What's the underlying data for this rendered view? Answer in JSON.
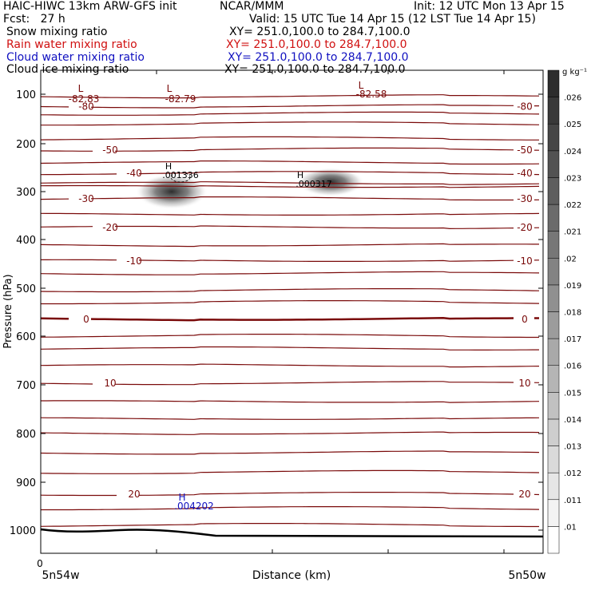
{
  "header": {
    "model": "HAIC-HIWC 13km ARW-GFS init",
    "org": "NCAR/MMM",
    "init": "Init: 12 UTC Mon 13 Apr 15",
    "fcst": "Fcst:   27 h",
    "valid": "Valid: 15 UTC Tue 14 Apr 15 (12 LST Tue 14 Apr 15)"
  },
  "fields": [
    {
      "name": "Snow mixing ratio",
      "xy": "XY= 251.0,100.0 to 284.7,100.0",
      "color": "#000000"
    },
    {
      "name": "Rain water mixing ratio",
      "xy": "XY= 251.0,100.0 to 284.7,100.0",
      "color": "#d01010"
    },
    {
      "name": "Cloud water mixing ratio",
      "xy": "XY= 251.0,100.0 to 284.7,100.0",
      "color": "#1010c0"
    },
    {
      "name": "Cloud ice mixing ratio",
      "xy": "XY= 251.0,100.0 to 284.7,100.0",
      "color": "#000000"
    }
  ],
  "chart_data": {
    "type": "cross-section",
    "ylabel": "Pressure (hPa)",
    "xlabel": "Distance (km)",
    "y_ticks": [
      "100",
      "200",
      "300",
      "400",
      "500",
      "600",
      "700",
      "800",
      "900",
      "1000"
    ],
    "x_tick_labels": {
      "start": "0",
      "left": "5n54w",
      "right": "5n50w"
    },
    "colorbar": {
      "unit": "g kg⁻¹",
      "levels": [
        ".01",
        ".011",
        ".012",
        ".013",
        ".014",
        ".015",
        ".016",
        ".017",
        ".018",
        ".019",
        ".02",
        ".021",
        ".022",
        ".023",
        ".024",
        ".025",
        ".026"
      ]
    },
    "temperature_contours_C": [
      {
        "label": "-80",
        "p": 125
      },
      {
        "label": "-50",
        "p": 213
      },
      {
        "label": "-40",
        "p": 262
      },
      {
        "label": "-30",
        "p": 315
      },
      {
        "label": "-20",
        "p": 375
      },
      {
        "label": "-10",
        "p": 444
      },
      {
        "label": "0",
        "p": 565,
        "bold": true
      },
      {
        "label": "10",
        "p": 697
      },
      {
        "label": "20",
        "p": 925
      }
    ],
    "annotations": [
      {
        "mark": "L",
        "value": "-82.83"
      },
      {
        "mark": "L",
        "value": "-82.79"
      },
      {
        "mark": "L",
        "value": "-82.58"
      },
      {
        "mark": "H",
        "value": ".001336"
      },
      {
        "mark": "H",
        "value": ".000317"
      },
      {
        "mark": "H",
        "value": ".004202",
        "color": "#1010c0"
      }
    ],
    "contour_color": "#7a0a0a"
  }
}
